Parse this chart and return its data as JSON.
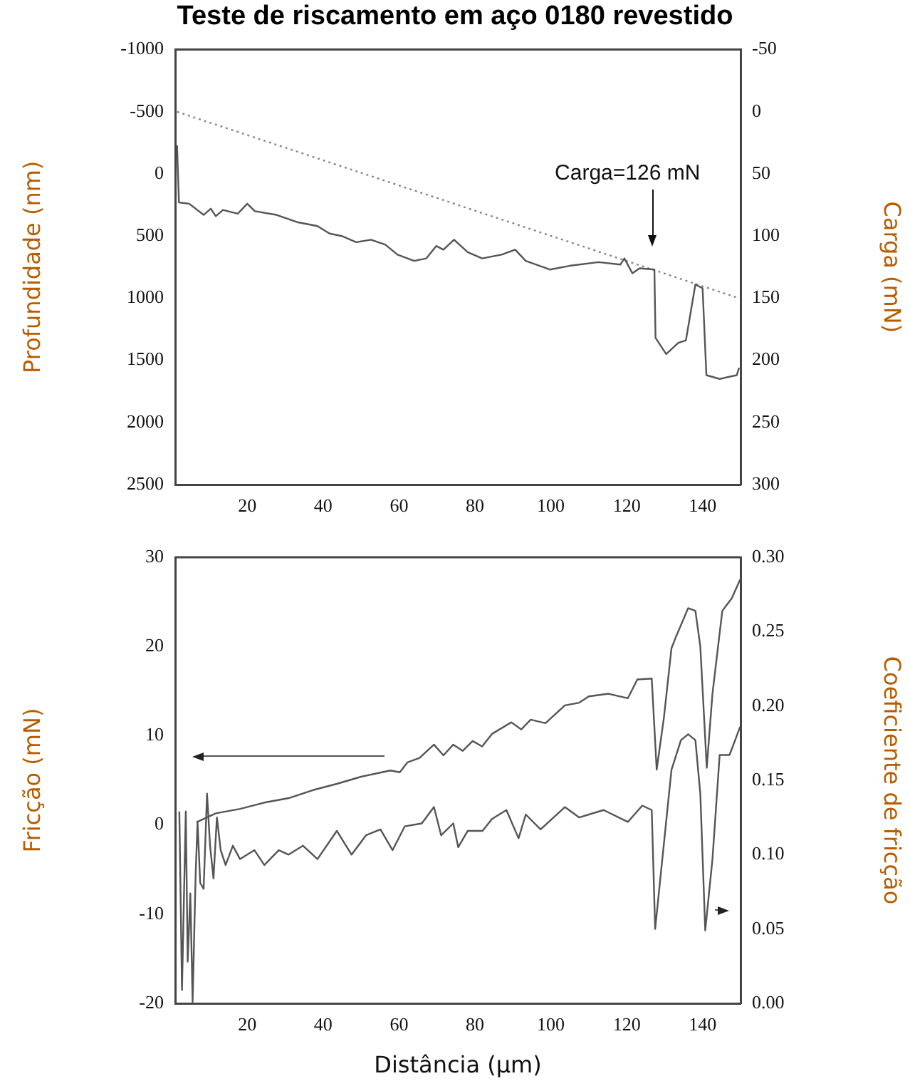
{
  "chart_data": [
    {
      "type": "line",
      "title": "Teste de riscamento em aço 0180 revestido",
      "ylabel": "Profundidade (nm)",
      "y2label": "Carga (mN)",
      "xlim": [
        1,
        150
      ],
      "xticks": [
        20,
        40,
        60,
        80,
        100,
        120,
        140
      ],
      "ylim": [
        2500,
        -1000
      ],
      "yticks": [
        -1000,
        -500,
        0,
        500,
        1000,
        1500,
        2000,
        2500
      ],
      "y2lim": [
        300,
        -50
      ],
      "y2ticks": [
        -50,
        0,
        50,
        100,
        150,
        200,
        250,
        300
      ],
      "annotations": [
        "Carga=126 mN"
      ],
      "series": [
        {
          "color": "#555555",
          "x": [
            1.5,
            2,
            4.7,
            8.5,
            10.4,
            11.7,
            13.6,
            17.5,
            20,
            22,
            27.7,
            33.4,
            38.5,
            41.7,
            44.9,
            48.7,
            52.6,
            56.4,
            59.6,
            64,
            67.2,
            69.8,
            71.7,
            74.5,
            78.1,
            81.9,
            87,
            90.6,
            93.4,
            99.8,
            104.9,
            112.6,
            118.3,
            119.4,
            121.5,
            123.4,
            127.3,
            127.6,
            130.4,
            133.6,
            135.6,
            138.1,
            140,
            141,
            144.5,
            149,
            149.6
          ],
          "values": [
            -230,
            230,
            240,
            330,
            280,
            340,
            290,
            320,
            240,
            300,
            330,
            390,
            420,
            480,
            500,
            550,
            530,
            570,
            650,
            700,
            680,
            580,
            610,
            530,
            630,
            680,
            650,
            610,
            700,
            770,
            740,
            710,
            730,
            680,
            800,
            760,
            770,
            1320,
            1450,
            1360,
            1340,
            890,
            920,
            1620,
            1650,
            1620,
            1560
          ]
        },
        {
          "color": "#888888",
          "axis": "y2",
          "line_style": "dotted",
          "x": [
            1.5,
            149.5
          ],
          "values": [
            0,
            150
          ]
        }
      ]
    },
    {
      "type": "line",
      "xlabel": "Distância (μm)",
      "ylabel": "Fricção (mN)",
      "y2label": "Coeficiente de fricção",
      "xlim": [
        1,
        150
      ],
      "xticks": [
        20,
        40,
        60,
        80,
        100,
        120,
        140
      ],
      "ylim": [
        -20,
        30
      ],
      "yticks": [
        -20,
        -10,
        0,
        10,
        20,
        30
      ],
      "y2lim": [
        0,
        0.3
      ],
      "y2ticks": [
        {
          "value": 0,
          "label": "0.00"
        },
        {
          "value": 0.05,
          "label": "0.05"
        },
        {
          "value": 0.1,
          "label": "0.10"
        },
        {
          "value": 0.15,
          "label": "0.15"
        },
        {
          "value": 0.2,
          "label": "0.20"
        },
        {
          "value": 0.25,
          "label": "0.25"
        },
        {
          "value": 0.3,
          "label": "0.30"
        }
      ],
      "series": [
        {
          "color": "#555555",
          "x": [
            6.6,
            11.7,
            18.1,
            24.5,
            30.9,
            37.3,
            43.6,
            50,
            57.7,
            60.2,
            62.2,
            65.4,
            69.2,
            71.7,
            74.3,
            76.8,
            79.4,
            81.9,
            84.5,
            89.6,
            92.2,
            94.7,
            98.6,
            103.7,
            107.5,
            110,
            115.2,
            120.3,
            121.5,
            122.8,
            126.6,
            127.9,
            129.8,
            131.8,
            133,
            136.2,
            138.1,
            139.4,
            141.1,
            142.6,
            145.2,
            147.7,
            149.9
          ],
          "values": [
            0.3,
            1.3,
            1.8,
            2.5,
            3,
            3.9,
            4.6,
            5.4,
            6.1,
            5.9,
            7,
            7.5,
            9,
            7.8,
            9,
            8.3,
            9.4,
            8.8,
            10.2,
            11.5,
            10.7,
            11.8,
            11.4,
            13.4,
            13.7,
            14.4,
            14.7,
            14.2,
            15.2,
            16.3,
            16.4,
            6.2,
            12,
            19.8,
            21.1,
            24.3,
            24,
            20,
            6.4,
            14.7,
            24,
            25.4,
            27.5
          ]
        },
        {
          "color": "#555555",
          "axis": "y2",
          "x": [
            2.1,
            2.8,
            3.8,
            4.3,
            5,
            5.6,
            6.4,
            6.9,
            7.6,
            8.5,
            9.4,
            10.2,
            11.1,
            12,
            13,
            14.3,
            16.2,
            18.1,
            21.9,
            24.5,
            28.3,
            30.9,
            34.7,
            38.5,
            43.6,
            47.5,
            51.3,
            55.1,
            58.3,
            61.5,
            66,
            69.2,
            71.1,
            74.3,
            75.6,
            78.1,
            82,
            84.5,
            88.3,
            91.5,
            93.4,
            97.3,
            103.7,
            107.5,
            113.9,
            120.3,
            124.1,
            126.6,
            127.5,
            131.8,
            134.3,
            136.2,
            138.1,
            139.4,
            140.7,
            142.6,
            144.5,
            147.1,
            149.9
          ],
          "values": [
            0.129,
            0.009,
            0.129,
            0.028,
            0.074,
            0.001,
            0.087,
            0.122,
            0.081,
            0.077,
            0.141,
            0.106,
            0.084,
            0.125,
            0.103,
            0.093,
            0.106,
            0.097,
            0.103,
            0.093,
            0.103,
            0.1,
            0.106,
            0.097,
            0.116,
            0.1,
            0.113,
            0.117,
            0.103,
            0.119,
            0.121,
            0.132,
            0.113,
            0.121,
            0.105,
            0.116,
            0.116,
            0.124,
            0.13,
            0.111,
            0.127,
            0.117,
            0.132,
            0.125,
            0.13,
            0.122,
            0.133,
            0.13,
            0.05,
            0.157,
            0.177,
            0.181,
            0.177,
            0.141,
            0.049,
            0.097,
            0.167,
            0.167,
            0.186
          ]
        }
      ]
    }
  ]
}
